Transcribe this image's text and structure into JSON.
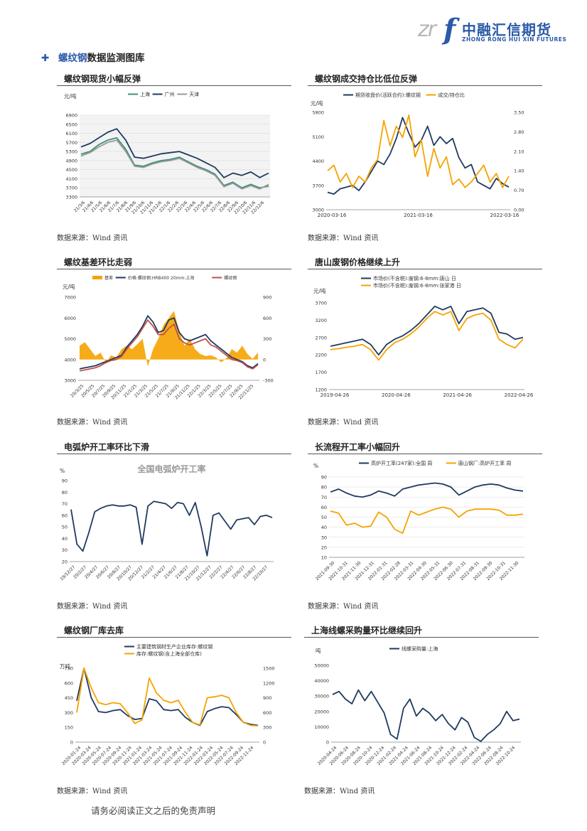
{
  "logo": {
    "mark_left": "zr",
    "mark_right": "f",
    "name_cn": "中融汇信期货",
    "name_en": "ZHONG RONG HUI XIN FUTURES"
  },
  "section": {
    "bullet": "✚",
    "highlight": "螺纹钢",
    "rest": "数据监测图库"
  },
  "source_label": "数据来源：Wind 资讯",
  "footer": "请务必阅读正文之后的免责声明",
  "colors": {
    "navy": "#1f3a5f",
    "orange": "#f5a300",
    "green": "#3d8f7a",
    "gray": "#9a9a9a",
    "red": "#c0504d"
  },
  "charts": [
    {
      "id": "c1",
      "title": "螺纹钢现货小幅反弹",
      "unit": "元/吨",
      "chart_data": {
        "type": "line",
        "ylim": [
          3300,
          6900
        ],
        "yticks": [
          "6900",
          "6500",
          "6100",
          "5700",
          "5300",
          "4900",
          "4500",
          "4100",
          "3700",
          "3300"
        ],
        "xticks": [
          "21/3/6",
          "21/4/6",
          "21/5/6",
          "21/6/6",
          "21/7/6",
          "21/8/6",
          "21/9/6",
          "21/10/6",
          "21/11/6",
          "21/12/6",
          "22/1/6",
          "22/2/6",
          "22/3/6",
          "22/4/6",
          "22/5/6",
          "22/6/6",
          "22/7/6",
          "22/8/6",
          "22/9/6",
          "22/10/6",
          "22/11/6",
          "22/12/6"
        ],
        "series": [
          {
            "name": "上海",
            "color": "#3d8f7a",
            "values": [
              5180,
              5300,
              5600,
              5800,
              5900,
              5400,
              4700,
              4650,
              4800,
              4900,
              4950,
              5050,
              4850,
              4650,
              4500,
              4300,
              3800,
              3950,
              3700,
              3850,
              3700,
              3780
            ]
          },
          {
            "name": "广州",
            "color": "#1f3a5f",
            "values": [
              5500,
              5650,
              5900,
              6150,
              6300,
              5800,
              5050,
              5000,
              5100,
              5200,
              5250,
              5300,
              5150,
              5000,
              4800,
              4600,
              4150,
              4350,
              4250,
              4400,
              4150,
              4350
            ]
          },
          {
            "name": "天津",
            "color": "#9a9a9a",
            "values": [
              5100,
              5250,
              5500,
              5700,
              5800,
              5300,
              4650,
              4600,
              4750,
              4850,
              4900,
              5000,
              4800,
              4600,
              4450,
              4250,
              3750,
              3900,
              3650,
              3800,
              3650,
              3850
            ]
          }
        ]
      }
    },
    {
      "id": "c2",
      "title": "螺纹钢成交持仓比低位反弹",
      "unit": "元/吨",
      "chart_data": {
        "type": "line",
        "ylim": [
          3000,
          5800
        ],
        "y2lim": [
          0,
          3.5
        ],
        "yticks": [
          "5800",
          "5100",
          "4400",
          "3700",
          "3000"
        ],
        "y2ticks": [
          "3.50",
          "2.80",
          "2.10",
          "1.40",
          "0.70",
          "0.00"
        ],
        "xticks": [
          "2020-03-16",
          "2021-03-16",
          "2022-03-16"
        ],
        "series": [
          {
            "name": "期货收盘价(活跃合约):螺纹钢",
            "color": "#1f3a5f",
            "axis": "left",
            "values": [
              3500,
              3450,
              3600,
              3650,
              3700,
              3550,
              3800,
              4100,
              4400,
              4300,
              4600,
              5050,
              5650,
              5200,
              4800,
              5000,
              5400,
              4850,
              5100,
              4900,
              5050,
              4500,
              4200,
              4300,
              3800,
              3700,
              3600,
              3900,
              3750,
              3650
            ]
          },
          {
            "name": "成交/持仓比",
            "color": "#f5a300",
            "axis": "right",
            "values": [
              1.4,
              1.6,
              1.0,
              1.3,
              0.8,
              1.2,
              1.0,
              1.5,
              1.8,
              3.2,
              2.3,
              3.0,
              2.6,
              3.4,
              1.9,
              2.5,
              1.2,
              2.2,
              1.5,
              1.9,
              0.9,
              1.1,
              0.8,
              1.0,
              1.3,
              1.6,
              1.0,
              1.3,
              0.8,
              1.2
            ]
          }
        ]
      }
    },
    {
      "id": "c3",
      "title": "螺纹基差环比走弱",
      "unit": "元/吨",
      "chart_data": {
        "type": "line",
        "ylim": [
          3000,
          7000
        ],
        "y2lim": [
          -300,
          900
        ],
        "yticks": [
          "7000",
          "6000",
          "5000",
          "4000",
          "3000"
        ],
        "y2ticks": [
          "900",
          "600",
          "300",
          "0",
          "-300"
        ],
        "xticks": [
          "20/3/25",
          "20/5/25",
          "20/7/25",
          "20/9/25",
          "20/11/25",
          "21/1/25",
          "21/3/25",
          "21/5/25",
          "21/7/25",
          "21/9/25",
          "21/11/25",
          "22/1/25",
          "22/3/25",
          "22/5/25",
          "22/7/25",
          "22/9/25",
          "22/11/25"
        ],
        "series": [
          {
            "name": "基差",
            "color": "#f5a300",
            "axis": "right",
            "type": "area",
            "values": [
              200,
              250,
              150,
              50,
              100,
              -40,
              60,
              30,
              150,
              200,
              150,
              220,
              300,
              -100,
              150,
              300,
              500,
              600,
              700,
              400,
              200,
              300,
              150,
              80,
              50,
              60,
              30,
              -40,
              20,
              150,
              100,
              200,
              80,
              10,
              100
            ]
          },
          {
            "name": "价格:螺纹钢:HRB400 20mm:上海",
            "color": "#1f3a5f",
            "axis": "left",
            "values": [
              3550,
              3600,
              3650,
              3700,
              3800,
              3900,
              4000,
              4100,
              4200,
              4600,
              4900,
              5200,
              5600,
              6100,
              5800,
              5300,
              5400,
              5900,
              6000,
              5300,
              5000,
              4900,
              5000,
              5100,
              5200,
              4900,
              4700,
              4500,
              4300,
              4100,
              4000,
              3900,
              3700,
              3600,
              3800
            ]
          },
          {
            "name": "螺纹钢",
            "color": "#c0504d",
            "axis": "left",
            "values": [
              3450,
              3500,
              3550,
              3600,
              3700,
              3850,
              3950,
              4000,
              4150,
              4500,
              4800,
              5100,
              5500,
              5900,
              5600,
              5200,
              5200,
              5500,
              5700,
              5000,
              4800,
              4700,
              4800,
              4900,
              5000,
              4700,
              4600,
              4400,
              4200,
              4000,
              3950,
              3850,
              3650,
              3550,
              3750
            ]
          }
        ]
      }
    },
    {
      "id": "c4",
      "title": "唐山废钢价格继续上升",
      "unit": "元/吨",
      "chart_data": {
        "type": "line",
        "ylim": [
          1200,
          3700
        ],
        "yticks": [
          "3700",
          "3200",
          "2700",
          "2200",
          "1700",
          "1200"
        ],
        "xticks": [
          "2019-04-26",
          "2020-04-26",
          "2021-04-26",
          "2022-04-26"
        ],
        "series": [
          {
            "name": "市场价(不含税):废钢:6-8mm:唐山 日",
            "color": "#1f3a5f",
            "values": [
              2450,
              2500,
              2550,
              2600,
              2650,
              2500,
              2200,
              2500,
              2650,
              2750,
              2900,
              3100,
              3350,
              3600,
              3500,
              3600,
              3100,
              3450,
              3500,
              3550,
              3400,
              2850,
              2800,
              2650,
              2700
            ]
          },
          {
            "name": "市场价(不含税):废钢:6-8mm:张家港 日",
            "color": "#f5a300",
            "values": [
              2350,
              2380,
              2420,
              2450,
              2500,
              2350,
              2050,
              2350,
              2550,
              2650,
              2800,
              3000,
              3250,
              3450,
              3350,
              3450,
              2900,
              3250,
              3350,
              3400,
              3200,
              2650,
              2500,
              2400,
              2650
            ]
          }
        ]
      }
    },
    {
      "id": "c5",
      "title": "电弧炉开工率环比下滑",
      "unit": "%",
      "inner_title": "全国电弧炉开工率",
      "chart_data": {
        "type": "line",
        "ylim": [
          20,
          90
        ],
        "yticks": [
          "90",
          "80",
          "70",
          "60",
          "50",
          "40",
          "30",
          "20"
        ],
        "xticks": [
          "19/12/27",
          "20/2/27",
          "20/4/27",
          "20/6/27",
          "20/8/27",
          "20/10/27",
          "20/12/27",
          "21/2/27",
          "21/4/27",
          "21/6/27",
          "21/8/27",
          "21/10/27",
          "21/12/27",
          "22/2/27",
          "22/4/27",
          "22/6/27",
          "22/8/27",
          "22/10/27"
        ],
        "series": [
          {
            "name": "全国电弧炉开工率",
            "color": "#1f3a5f",
            "values": [
              65,
              35,
              29,
              45,
              63,
              66,
              68,
              69,
              68,
              68,
              69,
              67,
              35,
              68,
              72,
              71,
              70,
              66,
              71,
              70,
              60,
              71,
              50,
              25,
              60,
              62,
              55,
              48,
              56,
              57,
              58,
              52,
              59,
              60,
              58
            ]
          }
        ]
      }
    },
    {
      "id": "c6",
      "title": "长流程开工率小幅回升",
      "unit": "%",
      "chart_data": {
        "type": "line",
        "ylim": [
          10,
          90
        ],
        "yticks": [
          "90",
          "80",
          "70",
          "60",
          "50",
          "40",
          "30",
          "20",
          "10"
        ],
        "xticks": [
          "2021-09-30",
          "2021-10-31",
          "2021-11-30",
          "2021-12-31",
          "2022-01-31",
          "2022-02-28",
          "2022-03-31",
          "2022-04-30",
          "2022-05-31",
          "2022-06-30",
          "2022-07-31",
          "2022-08-31",
          "2022-09-30",
          "2022-10-31",
          "2022-11-30"
        ],
        "series": [
          {
            "name": "高炉开工率(247家):全国 周",
            "color": "#1f3a5f",
            "values": [
              75,
              78,
              74,
              71,
              70,
              72,
              76,
              74,
              71,
              78,
              80,
              82,
              83,
              84,
              83,
              80,
              72,
              76,
              80,
              82,
              83,
              82,
              79,
              77,
              76
            ]
          },
          {
            "name": "唐山钢厂:高炉开工率 周",
            "color": "#f5a300",
            "values": [
              56,
              54,
              42,
              44,
              40,
              41,
              55,
              50,
              38,
              34,
              56,
              52,
              55,
              58,
              60,
              58,
              50,
              56,
              58,
              58,
              58,
              57,
              52,
              52,
              53
            ]
          }
        ]
      }
    },
    {
      "id": "c7",
      "title": "螺纹钢厂库去库",
      "unit": "万吨",
      "chart_data": {
        "type": "line",
        "ylim": [
          0,
          750
        ],
        "y2lim": [
          0,
          1500
        ],
        "yticks": [
          "750",
          "600",
          "450",
          "300",
          "150",
          "0"
        ],
        "y2ticks": [
          "1500",
          "1200",
          "900",
          "600",
          "300",
          "0"
        ],
        "xticks": [
          "2020-01-24",
          "2020-03-24",
          "2020-05-24",
          "2020-07-24",
          "2020-09-24",
          "2020-11-24",
          "2021-01-24",
          "2021-03-24",
          "2021-05-24",
          "2021-07-24",
          "2021-09-24",
          "2021-11-24",
          "2022-01-24",
          "2022-03-24",
          "2022-05-24",
          "2022-07-24",
          "2022-09-24",
          "2022-11-24"
        ],
        "series": [
          {
            "name": "主要建筑钢材生产企业库存:螺纹钢",
            "color": "#1f3a5f",
            "axis": "left",
            "values": [
              420,
              750,
              450,
              310,
              300,
              320,
              330,
              270,
              230,
              240,
              440,
              420,
              330,
              320,
              330,
              250,
              200,
              170,
              310,
              340,
              360,
              350,
              280,
              200,
              180,
              170
            ]
          },
          {
            "name": "库存:螺纹钢(含上海全部仓库)",
            "color": "#f5a300",
            "axis": "right",
            "values": [
              600,
              1500,
              1100,
              800,
              760,
              800,
              780,
              600,
              380,
              450,
              1300,
              1000,
              850,
              800,
              850,
              600,
              400,
              350,
              900,
              920,
              950,
              900,
              600,
              400,
              340,
              330
            ]
          }
        ]
      }
    },
    {
      "id": "c8",
      "title": "上海线螺采购量环比继续回升",
      "unit": "吨",
      "chart_data": {
        "type": "line",
        "ylim": [
          0,
          50000
        ],
        "yticks": [
          "50000",
          "40000",
          "30000",
          "20000",
          "10000",
          "0"
        ],
        "xticks": [
          "2020-04-24",
          "2020-06-24",
          "2020-08-24",
          "2020-10-24",
          "2020-12-24",
          "2021-02-24",
          "2021-04-24",
          "2021-06-24",
          "2021-08-24",
          "2021-10-24",
          "2021-12-24",
          "2022-02-24",
          "2022-04-24",
          "2022-06-24",
          "2022-08-24",
          "2022-10-24"
        ],
        "series": [
          {
            "name": "线螺采购量:上海",
            "color": "#1f3a5f",
            "values": [
              31000,
              33000,
              28000,
              25000,
              34000,
              27000,
              33000,
              26000,
              19000,
              5000,
              2000,
              22000,
              28000,
              17000,
              22000,
              19000,
              14000,
              18000,
              12000,
              8000,
              16000,
              13000,
              3000,
              500,
              5000,
              8000,
              12000,
              20000,
              14000,
              15000
            ]
          }
        ]
      }
    }
  ]
}
